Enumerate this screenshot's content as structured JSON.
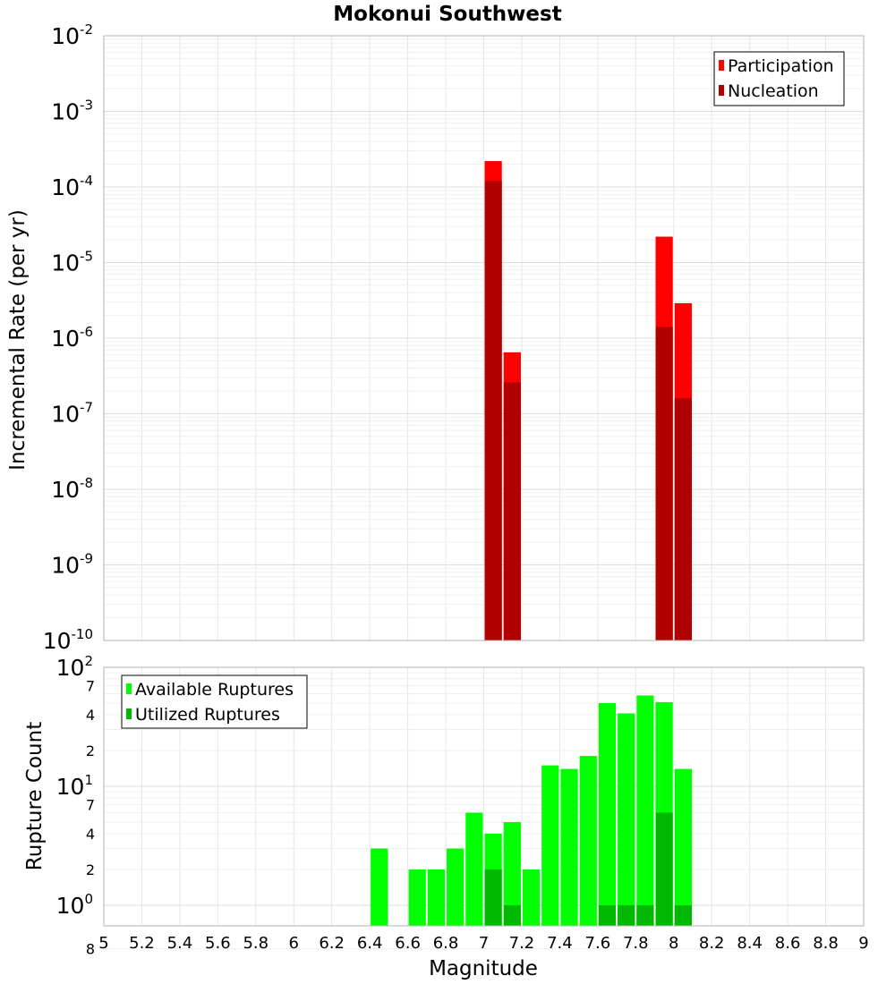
{
  "chart_data": [
    {
      "type": "bar",
      "title": "Mokonui Southwest",
      "xlabel": "",
      "ylabel": "Incremental Rate (per yr)",
      "yscale": "log",
      "ylim": [
        1e-10,
        0.01
      ],
      "xlim": [
        5,
        9
      ],
      "bin_width": 0.1,
      "grid": true,
      "legend_position": "top-right",
      "y_tick_labels": [
        {
          "value": 1e-10,
          "base": "10",
          "exp": "-10"
        },
        {
          "value": 1e-09,
          "base": "10",
          "exp": "-9"
        },
        {
          "value": 1e-08,
          "base": "10",
          "exp": "-8"
        },
        {
          "value": 1e-07,
          "base": "10",
          "exp": "-7"
        },
        {
          "value": 1e-06,
          "base": "10",
          "exp": "-6"
        },
        {
          "value": 1e-05,
          "base": "10",
          "exp": "-5"
        },
        {
          "value": 0.0001,
          "base": "10",
          "exp": "-4"
        },
        {
          "value": 0.001,
          "base": "10",
          "exp": "-3"
        },
        {
          "value": 0.01,
          "base": "10",
          "exp": "-2"
        }
      ],
      "series": [
        {
          "name": "Participation",
          "color": "#ff0000",
          "points": [
            {
              "x": 7.05,
              "y": 0.00022
            },
            {
              "x": 7.15,
              "y": 6.5e-07
            },
            {
              "x": 7.95,
              "y": 2.2e-05
            },
            {
              "x": 8.05,
              "y": 2.9e-06
            }
          ]
        },
        {
          "name": "Nucleation",
          "color": "#b00000",
          "points": [
            {
              "x": 7.05,
              "y": 0.00012
            },
            {
              "x": 7.15,
              "y": 2.6e-07
            },
            {
              "x": 7.95,
              "y": 1.4e-06
            },
            {
              "x": 8.05,
              "y": 1.6e-07
            }
          ]
        }
      ]
    },
    {
      "type": "bar",
      "title": "",
      "xlabel": "Magnitude",
      "ylabel": "Rupture Count",
      "yscale": "log",
      "ylim": [
        0.9,
        100
      ],
      "xlim": [
        5,
        9
      ],
      "bin_width": 0.1,
      "grid": true,
      "legend_position": "top-left",
      "x_ticks": [
        "5",
        "5.2",
        "5.4",
        "5.6",
        "5.8",
        "6",
        "6.2",
        "6.4",
        "6.6",
        "6.8",
        "7",
        "7.2",
        "7.4",
        "7.6",
        "7.8",
        "8",
        "8.2",
        "8.4",
        "8.6",
        "8.8",
        "9"
      ],
      "y_major_labels": [
        {
          "value": 1,
          "base": "10",
          "exp": "0"
        },
        {
          "value": 10,
          "base": "10",
          "exp": "1"
        },
        {
          "value": 100,
          "base": "10",
          "exp": "2"
        }
      ],
      "y_minor_labels": [
        {
          "value": 0.8,
          "label": "8"
        },
        {
          "value": 2,
          "label": "2"
        },
        {
          "value": 4,
          "label": "4"
        },
        {
          "value": 7,
          "label": "7"
        },
        {
          "value": 20,
          "label": "2"
        },
        {
          "value": 40,
          "label": "4"
        },
        {
          "value": 70,
          "label": "7"
        }
      ],
      "series": [
        {
          "name": "Available Ruptures",
          "color": "#00ff00",
          "points": [
            {
              "x": 6.45,
              "y": 3
            },
            {
              "x": 6.65,
              "y": 2
            },
            {
              "x": 6.75,
              "y": 2
            },
            {
              "x": 6.85,
              "y": 3
            },
            {
              "x": 6.95,
              "y": 6
            },
            {
              "x": 7.05,
              "y": 4
            },
            {
              "x": 7.15,
              "y": 5
            },
            {
              "x": 7.25,
              "y": 2
            },
            {
              "x": 7.35,
              "y": 15
            },
            {
              "x": 7.45,
              "y": 14
            },
            {
              "x": 7.55,
              "y": 18
            },
            {
              "x": 7.65,
              "y": 50
            },
            {
              "x": 7.75,
              "y": 41
            },
            {
              "x": 7.85,
              "y": 58
            },
            {
              "x": 7.95,
              "y": 51
            },
            {
              "x": 8.05,
              "y": 14
            }
          ]
        },
        {
          "name": "Utilized Ruptures",
          "color": "#00b800",
          "points": [
            {
              "x": 7.05,
              "y": 2
            },
            {
              "x": 7.15,
              "y": 1
            },
            {
              "x": 7.65,
              "y": 1
            },
            {
              "x": 7.75,
              "y": 1
            },
            {
              "x": 7.85,
              "y": 1
            },
            {
              "x": 7.95,
              "y": 6
            },
            {
              "x": 8.05,
              "y": 1
            }
          ]
        }
      ]
    }
  ]
}
